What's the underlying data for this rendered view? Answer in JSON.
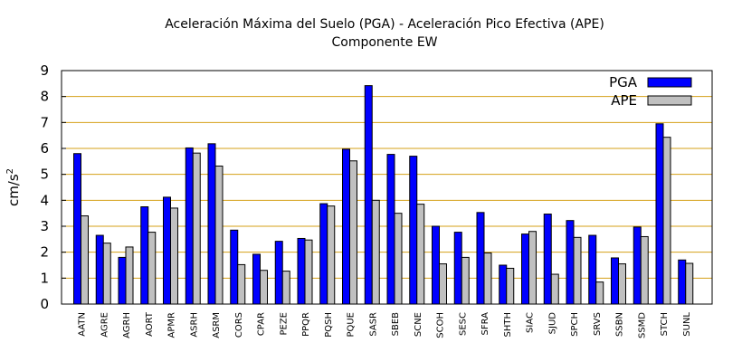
{
  "chart_data": {
    "type": "bar",
    "title": "Aceleración Máxima del Suelo (PGA) -  Aceleración Pico Efectiva (APE)",
    "subtitle": "Componente EW",
    "ylabel": "cm/s",
    "ylabel_sup": "2",
    "xlabel": "",
    "ylim": [
      0,
      9
    ],
    "yticks": [
      "0",
      "1",
      "2",
      "3",
      "4",
      "5",
      "6",
      "7",
      "8",
      "9"
    ],
    "grid": "horizontal",
    "legend_position": "top-right",
    "categories": [
      "AATN",
      "AGRE",
      "AGRH",
      "AORT",
      "APMR",
      "ASRH",
      "ASRM",
      "CORS",
      "CPAR",
      "PEZE",
      "PPQR",
      "PQSH",
      "PQUE",
      "SASR",
      "SBEB",
      "SCNE",
      "SCOH",
      "SESC",
      "SFRA",
      "SHTH",
      "SIAC",
      "SJUD",
      "SPCH",
      "SRVS",
      "SSBN",
      "SSMD",
      "STCH",
      "SUNL"
    ],
    "series": [
      {
        "name": "PGA",
        "color": "#0000ff",
        "values": [
          5.8,
          2.65,
          1.8,
          3.75,
          4.12,
          6.02,
          6.18,
          2.85,
          1.92,
          2.42,
          2.53,
          3.87,
          5.97,
          8.42,
          5.77,
          5.7,
          3.0,
          2.77,
          3.53,
          1.5,
          2.7,
          3.47,
          3.22,
          2.65,
          1.78,
          2.97,
          6.95,
          1.7
        ]
      },
      {
        "name": "APE",
        "color": "#c0c0c0",
        "values": [
          3.4,
          2.35,
          2.2,
          2.77,
          3.7,
          5.82,
          5.32,
          1.52,
          1.3,
          1.27,
          2.47,
          3.78,
          5.52,
          4.0,
          3.5,
          3.85,
          1.55,
          1.8,
          1.97,
          1.38,
          2.8,
          1.15,
          2.57,
          0.85,
          1.55,
          2.6,
          6.43,
          1.57
        ]
      }
    ]
  }
}
